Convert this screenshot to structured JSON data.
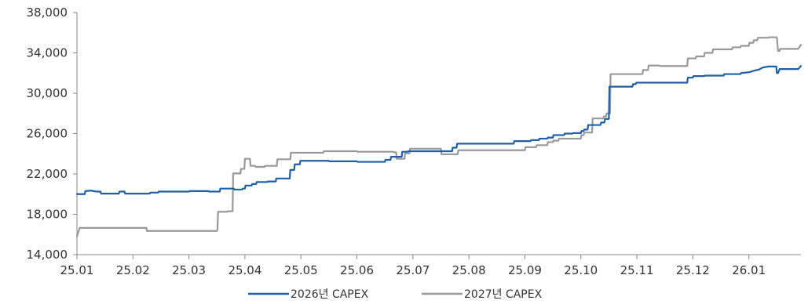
{
  "chart_data": {
    "type": "line",
    "title": "",
    "xlabel": "",
    "ylabel": "",
    "ylim": [
      14000,
      38000
    ],
    "yticks": [
      "14,000",
      "18,000",
      "22,000",
      "26,000",
      "30,000",
      "34,000",
      "38,000"
    ],
    "xticks": [
      "25.01",
      "25.02",
      "25.03",
      "25.04",
      "25.05",
      "25.06",
      "25.07",
      "25.08",
      "25.09",
      "25.10",
      "25.11",
      "25.12",
      "26.01"
    ],
    "xlim": [
      0,
      12.93
    ],
    "grid": false,
    "legend": "bottom",
    "series": [
      {
        "name": "2026년 CAPEX",
        "color": "#1f5fa6",
        "points": [
          [
            0,
            20000
          ],
          [
            0.14,
            20000
          ],
          [
            0.15,
            20300
          ],
          [
            0.25,
            20350
          ],
          [
            0.35,
            20250
          ],
          [
            0.42,
            20250
          ],
          [
            0.43,
            20050
          ],
          [
            0.75,
            20050
          ],
          [
            0.76,
            20250
          ],
          [
            0.85,
            20250
          ],
          [
            0.86,
            20050
          ],
          [
            1.3,
            20050
          ],
          [
            1.31,
            20150
          ],
          [
            1.45,
            20150
          ],
          [
            1.46,
            20250
          ],
          [
            2.0,
            20250
          ],
          [
            2.01,
            20300
          ],
          [
            2.35,
            20300
          ],
          [
            2.36,
            20250
          ],
          [
            2.55,
            20250
          ],
          [
            2.56,
            20550
          ],
          [
            2.8,
            20550
          ],
          [
            2.81,
            20450
          ],
          [
            2.95,
            20450
          ],
          [
            2.96,
            20550
          ],
          [
            3.0,
            20550
          ],
          [
            3.01,
            20850
          ],
          [
            3.12,
            20850
          ],
          [
            3.13,
            21000
          ],
          [
            3.2,
            21000
          ],
          [
            3.21,
            21200
          ],
          [
            3.4,
            21200
          ],
          [
            3.41,
            21250
          ],
          [
            3.55,
            21250
          ],
          [
            3.56,
            21550
          ],
          [
            3.8,
            21550
          ],
          [
            3.81,
            22400
          ],
          [
            3.88,
            22400
          ],
          [
            3.89,
            22950
          ],
          [
            3.98,
            22950
          ],
          [
            3.99,
            23300
          ],
          [
            4.5,
            23300
          ],
          [
            4.51,
            23250
          ],
          [
            5.0,
            23250
          ],
          [
            5.01,
            23200
          ],
          [
            5.5,
            23200
          ],
          [
            5.51,
            23400
          ],
          [
            5.6,
            23400
          ],
          [
            5.61,
            23700
          ],
          [
            5.8,
            23700
          ],
          [
            5.81,
            24200
          ],
          [
            5.9,
            24200
          ],
          [
            5.91,
            24250
          ],
          [
            6.7,
            24250
          ],
          [
            6.71,
            24600
          ],
          [
            6.78,
            24600
          ],
          [
            6.79,
            25000
          ],
          [
            7.8,
            25000
          ],
          [
            7.81,
            25250
          ],
          [
            8.1,
            25250
          ],
          [
            8.11,
            25350
          ],
          [
            8.25,
            25350
          ],
          [
            8.26,
            25500
          ],
          [
            8.4,
            25500
          ],
          [
            8.41,
            25600
          ],
          [
            8.5,
            25600
          ],
          [
            8.51,
            25850
          ],
          [
            8.7,
            25850
          ],
          [
            8.71,
            26000
          ],
          [
            8.85,
            26000
          ],
          [
            8.86,
            26050
          ],
          [
            9.0,
            26050
          ],
          [
            9.01,
            26250
          ],
          [
            9.05,
            26250
          ],
          [
            9.06,
            26400
          ],
          [
            9.12,
            26400
          ],
          [
            9.13,
            26850
          ],
          [
            9.35,
            26850
          ],
          [
            9.36,
            27100
          ],
          [
            9.42,
            27100
          ],
          [
            9.43,
            27450
          ],
          [
            9.5,
            27450
          ],
          [
            9.51,
            30650
          ],
          [
            9.92,
            30650
          ],
          [
            9.93,
            30900
          ],
          [
            9.98,
            30900
          ],
          [
            9.99,
            31050
          ],
          [
            10.9,
            31050
          ],
          [
            10.91,
            31550
          ],
          [
            11.0,
            31550
          ],
          [
            11.01,
            31700
          ],
          [
            11.2,
            31700
          ],
          [
            11.21,
            31750
          ],
          [
            11.55,
            31750
          ],
          [
            11.56,
            31900
          ],
          [
            11.85,
            31900
          ],
          [
            11.86,
            32000
          ],
          [
            11.95,
            32050
          ],
          [
            12.02,
            32100
          ],
          [
            12.1,
            32250
          ],
          [
            12.18,
            32350
          ],
          [
            12.25,
            32550
          ],
          [
            12.35,
            32650
          ],
          [
            12.49,
            32650
          ],
          [
            12.5,
            32000
          ],
          [
            12.52,
            32000
          ],
          [
            12.55,
            32400
          ],
          [
            12.88,
            32400
          ],
          [
            12.93,
            32700
          ]
        ]
      },
      {
        "name": "2027년 CAPEX",
        "color": "#999999",
        "points": [
          [
            0,
            15800
          ],
          [
            0.03,
            16350
          ],
          [
            0.05,
            16650
          ],
          [
            1.24,
            16650
          ],
          [
            1.25,
            16350
          ],
          [
            1.9,
            16350
          ],
          [
            2.5,
            16350
          ],
          [
            2.51,
            16550
          ],
          [
            2.52,
            18250
          ],
          [
            2.68,
            18250
          ],
          [
            2.69,
            18300
          ],
          [
            2.78,
            18300
          ],
          [
            2.79,
            22050
          ],
          [
            2.92,
            22050
          ],
          [
            2.93,
            22500
          ],
          [
            2.99,
            22500
          ],
          [
            3.0,
            23500
          ],
          [
            3.09,
            23500
          ],
          [
            3.1,
            22800
          ],
          [
            3.18,
            22800
          ],
          [
            3.19,
            22700
          ],
          [
            3.35,
            22700
          ],
          [
            3.36,
            22800
          ],
          [
            3.57,
            22800
          ],
          [
            3.58,
            23450
          ],
          [
            3.81,
            23450
          ],
          [
            3.82,
            24100
          ],
          [
            4.4,
            24100
          ],
          [
            4.41,
            24250
          ],
          [
            5.0,
            24250
          ],
          [
            5.01,
            24200
          ],
          [
            5.65,
            24200
          ],
          [
            5.66,
            24150
          ],
          [
            5.7,
            24150
          ],
          [
            5.71,
            23500
          ],
          [
            5.85,
            23500
          ],
          [
            5.86,
            24050
          ],
          [
            5.94,
            24050
          ],
          [
            5.95,
            24500
          ],
          [
            6.5,
            24500
          ],
          [
            6.51,
            23950
          ],
          [
            6.8,
            23950
          ],
          [
            6.81,
            24350
          ],
          [
            8.0,
            24350
          ],
          [
            8.01,
            24650
          ],
          [
            8.2,
            24650
          ],
          [
            8.21,
            24850
          ],
          [
            8.4,
            24850
          ],
          [
            8.41,
            25150
          ],
          [
            8.5,
            25150
          ],
          [
            8.51,
            25300
          ],
          [
            8.6,
            25300
          ],
          [
            8.61,
            25500
          ],
          [
            9.0,
            25500
          ],
          [
            9.01,
            25850
          ],
          [
            9.05,
            25850
          ],
          [
            9.06,
            26100
          ],
          [
            9.2,
            26100
          ],
          [
            9.21,
            27500
          ],
          [
            9.4,
            27500
          ],
          [
            9.41,
            27700
          ],
          [
            9.45,
            27700
          ],
          [
            9.46,
            28000
          ],
          [
            9.52,
            28000
          ],
          [
            9.53,
            31900
          ],
          [
            10.1,
            31900
          ],
          [
            10.11,
            32300
          ],
          [
            10.2,
            32300
          ],
          [
            10.21,
            32750
          ],
          [
            10.4,
            32750
          ],
          [
            10.41,
            32700
          ],
          [
            10.9,
            32700
          ],
          [
            10.91,
            33450
          ],
          [
            11.05,
            33450
          ],
          [
            11.06,
            33650
          ],
          [
            11.2,
            33650
          ],
          [
            11.21,
            34000
          ],
          [
            11.35,
            34000
          ],
          [
            11.36,
            34350
          ],
          [
            11.7,
            34350
          ],
          [
            11.71,
            34550
          ],
          [
            11.85,
            34550
          ],
          [
            11.86,
            34700
          ],
          [
            12.0,
            34700
          ],
          [
            12.01,
            35000
          ],
          [
            12.08,
            35000
          ],
          [
            12.09,
            35250
          ],
          [
            12.15,
            35250
          ],
          [
            12.16,
            35500
          ],
          [
            12.35,
            35500
          ],
          [
            12.36,
            35550
          ],
          [
            12.5,
            35550
          ],
          [
            12.52,
            34200
          ],
          [
            12.55,
            34200
          ],
          [
            12.56,
            34400
          ],
          [
            12.88,
            34400
          ],
          [
            12.93,
            34800
          ]
        ]
      }
    ]
  }
}
